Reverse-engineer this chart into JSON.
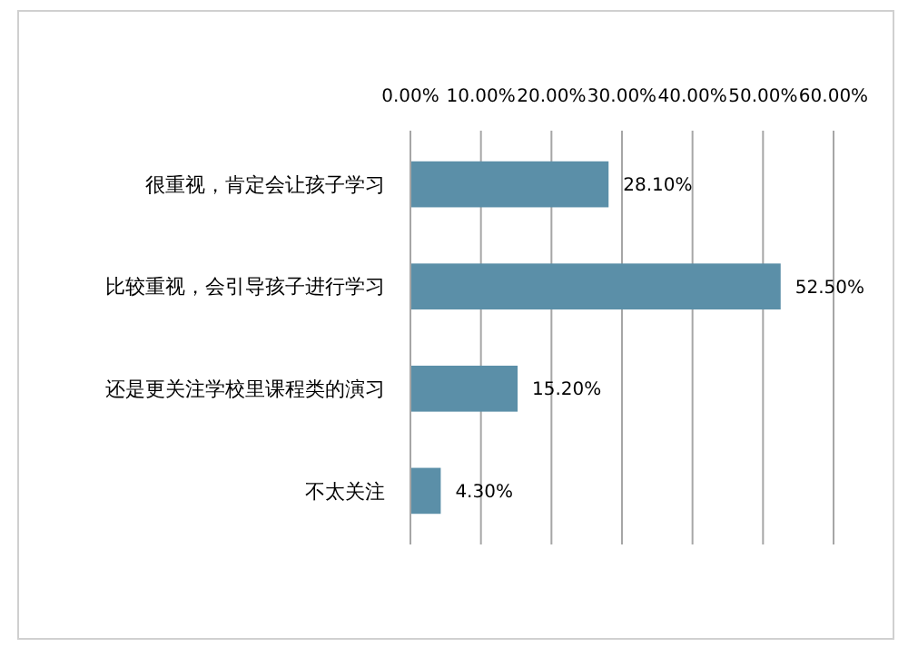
{
  "chart_data": {
    "type": "bar",
    "orientation": "horizontal",
    "categories": [
      "很重视，肯定会让孩子学习",
      "比较重视，会引导孩子进行学习",
      "还是更关注学校里课程类的演习",
      "不太关注"
    ],
    "values": [
      28.1,
      52.5,
      15.2,
      4.3
    ],
    "value_labels": [
      "28.10%",
      "52.50%",
      "15.20%",
      "4.30%"
    ],
    "color": "#5b8fa8",
    "xlim": [
      0,
      60
    ],
    "xticks": [
      {
        "value": 0,
        "label": "0.00%"
      },
      {
        "value": 10,
        "label": "10.00%"
      },
      {
        "value": 20,
        "label": "20.00%"
      },
      {
        "value": 30,
        "label": "30.00%"
      },
      {
        "value": 40,
        "label": "40.00%"
      },
      {
        "value": 50,
        "label": "50.00%"
      },
      {
        "value": 60,
        "label": "60.00%"
      }
    ],
    "grid": "x"
  }
}
